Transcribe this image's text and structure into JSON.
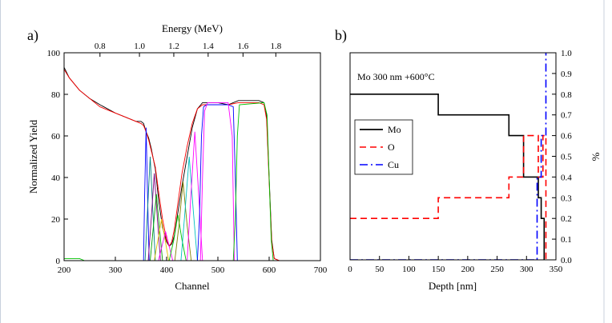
{
  "chart_data": [
    {
      "panel_label": "a)",
      "type": "line",
      "xlabel": "Channel",
      "ylabel": "Normalized Yield",
      "top_xlabel": "Energy (MeV)",
      "xlim": [
        200,
        700
      ],
      "ylim": [
        0,
        100
      ],
      "x_ticks": [
        "200",
        "300",
        "400",
        "500",
        "600",
        "700"
      ],
      "y_ticks": [
        "0",
        "20",
        "40",
        "60",
        "80",
        "100"
      ],
      "top_ticks": [
        {
          "label": "0.8",
          "channel": 270
        },
        {
          "label": "1.0",
          "channel": 347
        },
        {
          "label": "1.2",
          "channel": 414
        },
        {
          "label": "1.4",
          "channel": 481
        },
        {
          "label": "1.6",
          "channel": 549
        },
        {
          "label": "1.8",
          "channel": 613
        }
      ],
      "series": [
        {
          "color": "#000000",
          "x": [
            200,
            210,
            230,
            250,
            270,
            300,
            320,
            340,
            350,
            355,
            360,
            365,
            370,
            378,
            385,
            392,
            400,
            405,
            410,
            415,
            420,
            425,
            430,
            440,
            450,
            460,
            470,
            480,
            500,
            520,
            540,
            560,
            580,
            590,
            595,
            600,
            605,
            610,
            620,
            640,
            700
          ],
          "y": [
            93,
            88,
            82,
            78,
            75,
            71,
            69,
            67,
            67,
            66,
            62,
            59,
            54,
            44,
            28,
            16,
            9,
            7,
            8,
            12,
            20,
            28,
            36,
            50,
            64,
            73,
            76,
            76,
            76,
            75,
            77,
            77,
            77,
            76,
            70,
            40,
            10,
            1,
            0,
            0,
            0
          ]
        },
        {
          "color": "#ff0000",
          "x": [
            200,
            210,
            230,
            250,
            270,
            300,
            320,
            340,
            350,
            355,
            360,
            365,
            370,
            378,
            385,
            392,
            400,
            405,
            410,
            415,
            420,
            425,
            430,
            440,
            450,
            460,
            470,
            480,
            500,
            520,
            540,
            560,
            580,
            590,
            595,
            600,
            605,
            610,
            620,
            640,
            700
          ],
          "y": [
            92,
            88,
            82,
            78,
            74,
            71,
            69,
            67,
            66,
            65,
            62,
            58,
            53,
            45,
            32,
            20,
            10,
            7,
            9,
            15,
            24,
            33,
            42,
            55,
            66,
            73,
            75,
            75,
            75,
            75,
            76,
            76,
            76,
            75,
            68,
            38,
            9,
            1,
            0,
            0,
            0
          ]
        },
        {
          "color": "#0000ff",
          "x": [
            355,
            357,
            360,
            363,
            366
          ],
          "y": [
            0,
            30,
            64,
            30,
            0
          ]
        },
        {
          "color": "#008080",
          "x": [
            358,
            363,
            368,
            373,
            378
          ],
          "y": [
            0,
            25,
            50,
            25,
            0
          ]
        },
        {
          "color": "#800080",
          "x": [
            364,
            370,
            376,
            382,
            388
          ],
          "y": [
            0,
            20,
            42,
            20,
            0
          ]
        },
        {
          "color": "#00a000",
          "x": [
            368,
            374,
            380,
            386,
            392
          ],
          "y": [
            0,
            16,
            32,
            16,
            0
          ]
        },
        {
          "color": "#e0c000",
          "x": [
            376,
            383,
            390,
            397,
            404
          ],
          "y": [
            0,
            10,
            20,
            10,
            0
          ]
        },
        {
          "color": "#ff00ff",
          "x": [
            384,
            391,
            398,
            405,
            412
          ],
          "y": [
            0,
            7,
            14,
            7,
            0
          ]
        },
        {
          "color": "#00c000",
          "x": [
            405,
            414,
            422,
            430,
            438
          ],
          "y": [
            0,
            10,
            22,
            10,
            0
          ]
        },
        {
          "color": "#808000",
          "x": [
            416,
            424,
            432,
            440,
            448
          ],
          "y": [
            0,
            17,
            38,
            17,
            0
          ]
        },
        {
          "color": "#00c0c0",
          "x": [
            428,
            436,
            444,
            452,
            460
          ],
          "y": [
            0,
            24,
            50,
            24,
            0
          ]
        },
        {
          "color": "#ff00ff",
          "x": [
            440,
            447,
            455,
            463,
            470
          ],
          "y": [
            0,
            30,
            62,
            30,
            0
          ]
        },
        {
          "color": "#0000ff",
          "x": [
            460,
            464,
            468,
            472,
            478,
            520,
            530,
            534,
            538
          ],
          "y": [
            0,
            20,
            60,
            74,
            75,
            75,
            74,
            40,
            0
          ]
        },
        {
          "color": "#ff00ff",
          "x": [
            466,
            470,
            474,
            480,
            520,
            528,
            532
          ],
          "y": [
            0,
            40,
            72,
            76,
            76,
            60,
            0
          ]
        },
        {
          "color": "#00c000",
          "x": [
            530,
            534,
            538,
            542,
            590,
            596,
            600,
            604,
            608
          ],
          "y": [
            0,
            20,
            60,
            75,
            76,
            70,
            40,
            10,
            0
          ]
        },
        {
          "color": "#00c000",
          "x": [
            200,
            230,
            240
          ],
          "y": [
            1,
            1,
            0
          ]
        }
      ]
    },
    {
      "panel_label": "b)",
      "type": "line",
      "annotation": "Mo 300 nm +600°C",
      "xlabel": "Depth [nm]",
      "ylabel": "%",
      "xlim": [
        0,
        350
      ],
      "ylim": [
        0,
        1.0
      ],
      "x_ticks": [
        "0",
        "50",
        "100",
        "150",
        "200",
        "250",
        "300",
        "350"
      ],
      "y_ticks": [
        "0.0",
        "0.1",
        "0.2",
        "0.3",
        "0.4",
        "0.5",
        "0.6",
        "0.7",
        "0.8",
        "0.9",
        "1.0"
      ],
      "legend": [
        "Mo",
        "O",
        "Cu"
      ],
      "series": [
        {
          "name": "Mo",
          "color": "#000000",
          "dash": "",
          "x": [
            0,
            150,
            150,
            270,
            270,
            295,
            295,
            320,
            320,
            325,
            325,
            330,
            330
          ],
          "y": [
            0.8,
            0.8,
            0.7,
            0.7,
            0.6,
            0.6,
            0.4,
            0.4,
            0.3,
            0.3,
            0.2,
            0.2,
            0
          ]
        },
        {
          "name": "O",
          "color": "#ff0000",
          "dash": "8,5",
          "x": [
            0,
            150,
            150,
            270,
            270,
            295,
            295,
            320,
            320,
            328,
            328,
            333,
            333
          ],
          "y": [
            0.2,
            0.2,
            0.3,
            0.3,
            0.4,
            0.4,
            0.6,
            0.6,
            0.4,
            0.4,
            0.6,
            0.6,
            0
          ]
        },
        {
          "name": "Cu",
          "color": "#0000ff",
          "dash": "10,4,2,4",
          "x": [
            0,
            318,
            318,
            325,
            325,
            333,
            333
          ],
          "y": [
            0,
            0,
            0.4,
            0.4,
            0.6,
            0.6,
            1.0
          ]
        }
      ]
    }
  ]
}
